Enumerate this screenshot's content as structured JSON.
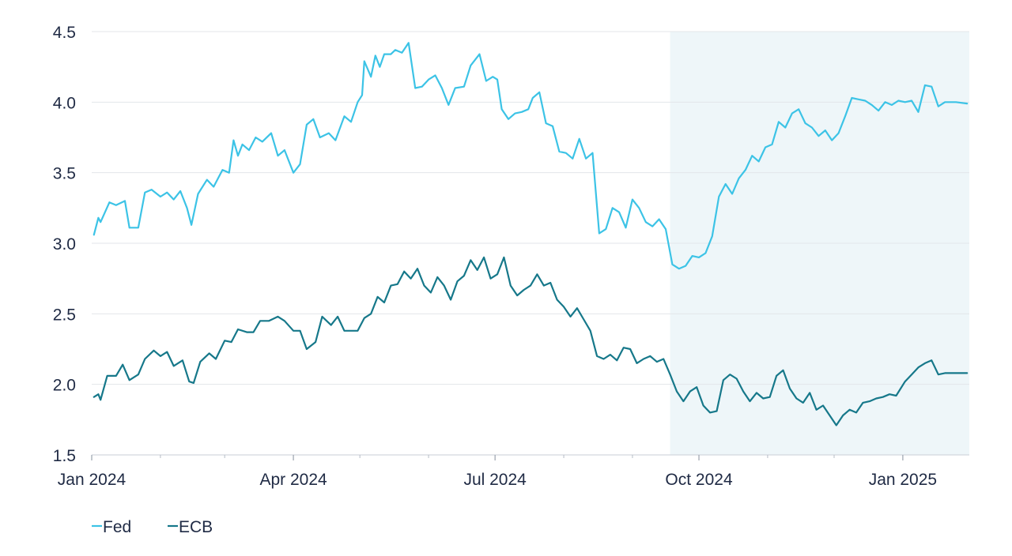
{
  "chart_data": {
    "type": "line",
    "title": "",
    "xlabel": "",
    "ylabel": "",
    "x_range": [
      "2024-01-01",
      "2025-01-31"
    ],
    "ylim": [
      1.5,
      4.5
    ],
    "y_ticks": [
      "1.5",
      "2.0",
      "2.5",
      "3.0",
      "3.5",
      "4.0",
      "4.5"
    ],
    "y_tick_values": [
      1.5,
      2.0,
      2.5,
      3.0,
      3.5,
      4.0,
      4.5
    ],
    "x_ticks": [
      {
        "date": "2024-01-01",
        "label": "Jan 2024"
      },
      {
        "date": "2024-04-01",
        "label": "Apr 2024"
      },
      {
        "date": "2024-07-01",
        "label": "Jul 2024"
      },
      {
        "date": "2024-10-01",
        "label": "Oct 2024"
      },
      {
        "date": "2025-01-01",
        "label": "Jan 2025"
      }
    ],
    "x_minor_ticks": [
      "2024-02-01",
      "2024-03-01",
      "2024-05-01",
      "2024-06-01",
      "2024-08-01",
      "2024-09-01",
      "2024-11-01",
      "2024-12-01"
    ],
    "grid": "horizontal",
    "legend_position": "bottom-left",
    "shaded_region": {
      "start": "2024-09-18",
      "end": "2025-01-31",
      "color": "#eef6f9"
    },
    "series": [
      {
        "name": "Fed",
        "color": "#3cc3e6",
        "points": [
          [
            "2024-01-02",
            3.06
          ],
          [
            "2024-01-04",
            3.18
          ],
          [
            "2024-01-05",
            3.15
          ],
          [
            "2024-01-09",
            3.29
          ],
          [
            "2024-01-12",
            3.27
          ],
          [
            "2024-01-16",
            3.3
          ],
          [
            "2024-01-18",
            3.11
          ],
          [
            "2024-01-22",
            3.11
          ],
          [
            "2024-01-25",
            3.36
          ],
          [
            "2024-01-28",
            3.38
          ],
          [
            "2024-02-01",
            3.33
          ],
          [
            "2024-02-04",
            3.36
          ],
          [
            "2024-02-07",
            3.31
          ],
          [
            "2024-02-10",
            3.37
          ],
          [
            "2024-02-13",
            3.25
          ],
          [
            "2024-02-15",
            3.13
          ],
          [
            "2024-02-18",
            3.35
          ],
          [
            "2024-02-22",
            3.45
          ],
          [
            "2024-02-25",
            3.4
          ],
          [
            "2024-02-29",
            3.52
          ],
          [
            "2024-03-03",
            3.5
          ],
          [
            "2024-03-05",
            3.73
          ],
          [
            "2024-03-07",
            3.62
          ],
          [
            "2024-03-09",
            3.7
          ],
          [
            "2024-03-12",
            3.66
          ],
          [
            "2024-03-15",
            3.75
          ],
          [
            "2024-03-18",
            3.72
          ],
          [
            "2024-03-22",
            3.78
          ],
          [
            "2024-03-25",
            3.62
          ],
          [
            "2024-03-28",
            3.66
          ],
          [
            "2024-04-01",
            3.5
          ],
          [
            "2024-04-04",
            3.56
          ],
          [
            "2024-04-07",
            3.84
          ],
          [
            "2024-04-10",
            3.88
          ],
          [
            "2024-04-13",
            3.75
          ],
          [
            "2024-04-17",
            3.78
          ],
          [
            "2024-04-20",
            3.73
          ],
          [
            "2024-04-24",
            3.9
          ],
          [
            "2024-04-27",
            3.86
          ],
          [
            "2024-04-30",
            4.0
          ],
          [
            "2024-05-02",
            4.05
          ],
          [
            "2024-05-03",
            4.29
          ],
          [
            "2024-05-06",
            4.18
          ],
          [
            "2024-05-08",
            4.33
          ],
          [
            "2024-05-10",
            4.25
          ],
          [
            "2024-05-12",
            4.34
          ],
          [
            "2024-05-15",
            4.34
          ],
          [
            "2024-05-17",
            4.37
          ],
          [
            "2024-05-20",
            4.35
          ],
          [
            "2024-05-23",
            4.42
          ],
          [
            "2024-05-26",
            4.1
          ],
          [
            "2024-05-29",
            4.11
          ],
          [
            "2024-06-01",
            4.16
          ],
          [
            "2024-06-04",
            4.19
          ],
          [
            "2024-06-07",
            4.1
          ],
          [
            "2024-06-10",
            3.98
          ],
          [
            "2024-06-13",
            4.1
          ],
          [
            "2024-06-17",
            4.11
          ],
          [
            "2024-06-20",
            4.26
          ],
          [
            "2024-06-24",
            4.34
          ],
          [
            "2024-06-27",
            4.15
          ],
          [
            "2024-06-30",
            4.18
          ],
          [
            "2024-07-02",
            4.16
          ],
          [
            "2024-07-04",
            3.95
          ],
          [
            "2024-07-07",
            3.88
          ],
          [
            "2024-07-10",
            3.92
          ],
          [
            "2024-07-13",
            3.93
          ],
          [
            "2024-07-16",
            3.95
          ],
          [
            "2024-07-18",
            4.03
          ],
          [
            "2024-07-21",
            4.07
          ],
          [
            "2024-07-24",
            3.85
          ],
          [
            "2024-07-27",
            3.83
          ],
          [
            "2024-07-30",
            3.65
          ],
          [
            "2024-08-02",
            3.64
          ],
          [
            "2024-08-05",
            3.6
          ],
          [
            "2024-08-08",
            3.74
          ],
          [
            "2024-08-11",
            3.6
          ],
          [
            "2024-08-14",
            3.64
          ],
          [
            "2024-08-17",
            3.07
          ],
          [
            "2024-08-20",
            3.1
          ],
          [
            "2024-08-23",
            3.25
          ],
          [
            "2024-08-26",
            3.22
          ],
          [
            "2024-08-29",
            3.11
          ],
          [
            "2024-09-01",
            3.31
          ],
          [
            "2024-09-04",
            3.25
          ],
          [
            "2024-09-07",
            3.15
          ],
          [
            "2024-09-10",
            3.12
          ],
          [
            "2024-09-13",
            3.17
          ],
          [
            "2024-09-16",
            3.1
          ],
          [
            "2024-09-19",
            2.85
          ],
          [
            "2024-09-22",
            2.82
          ],
          [
            "2024-09-25",
            2.84
          ],
          [
            "2024-09-28",
            2.91
          ],
          [
            "2024-10-01",
            2.9
          ],
          [
            "2024-10-04",
            2.93
          ],
          [
            "2024-10-07",
            3.05
          ],
          [
            "2024-10-10",
            3.33
          ],
          [
            "2024-10-13",
            3.42
          ],
          [
            "2024-10-16",
            3.35
          ],
          [
            "2024-10-19",
            3.46
          ],
          [
            "2024-10-22",
            3.52
          ],
          [
            "2024-10-25",
            3.62
          ],
          [
            "2024-10-28",
            3.58
          ],
          [
            "2024-10-31",
            3.68
          ],
          [
            "2024-11-03",
            3.7
          ],
          [
            "2024-11-06",
            3.86
          ],
          [
            "2024-11-09",
            3.82
          ],
          [
            "2024-11-12",
            3.92
          ],
          [
            "2024-11-15",
            3.95
          ],
          [
            "2024-11-18",
            3.85
          ],
          [
            "2024-11-21",
            3.82
          ],
          [
            "2024-11-24",
            3.76
          ],
          [
            "2024-11-27",
            3.8
          ],
          [
            "2024-11-30",
            3.73
          ],
          [
            "2024-12-03",
            3.78
          ],
          [
            "2024-12-06",
            3.9
          ],
          [
            "2024-12-09",
            4.03
          ],
          [
            "2024-12-12",
            4.02
          ],
          [
            "2024-12-15",
            4.01
          ],
          [
            "2024-12-18",
            3.98
          ],
          [
            "2024-12-21",
            3.94
          ],
          [
            "2024-12-24",
            4.0
          ],
          [
            "2024-12-27",
            3.98
          ],
          [
            "2024-12-30",
            4.01
          ],
          [
            "2025-01-02",
            4.0
          ],
          [
            "2025-01-05",
            4.01
          ],
          [
            "2025-01-08",
            3.93
          ],
          [
            "2025-01-11",
            4.12
          ],
          [
            "2025-01-14",
            4.11
          ],
          [
            "2025-01-17",
            3.97
          ],
          [
            "2025-01-20",
            4.0
          ],
          [
            "2025-01-25",
            4.0
          ],
          [
            "2025-01-30",
            3.99
          ]
        ]
      },
      {
        "name": "ECB",
        "color": "#16788a",
        "points": [
          [
            "2024-01-02",
            1.91
          ],
          [
            "2024-01-04",
            1.93
          ],
          [
            "2024-01-05",
            1.89
          ],
          [
            "2024-01-08",
            2.06
          ],
          [
            "2024-01-12",
            2.06
          ],
          [
            "2024-01-15",
            2.14
          ],
          [
            "2024-01-18",
            2.03
          ],
          [
            "2024-01-22",
            2.07
          ],
          [
            "2024-01-25",
            2.18
          ],
          [
            "2024-01-29",
            2.24
          ],
          [
            "2024-02-01",
            2.2
          ],
          [
            "2024-02-04",
            2.23
          ],
          [
            "2024-02-07",
            2.13
          ],
          [
            "2024-02-11",
            2.17
          ],
          [
            "2024-02-14",
            2.02
          ],
          [
            "2024-02-16",
            2.01
          ],
          [
            "2024-02-19",
            2.16
          ],
          [
            "2024-02-23",
            2.22
          ],
          [
            "2024-02-26",
            2.18
          ],
          [
            "2024-03-01",
            2.31
          ],
          [
            "2024-03-04",
            2.3
          ],
          [
            "2024-03-07",
            2.39
          ],
          [
            "2024-03-11",
            2.37
          ],
          [
            "2024-03-14",
            2.37
          ],
          [
            "2024-03-17",
            2.45
          ],
          [
            "2024-03-21",
            2.45
          ],
          [
            "2024-03-25",
            2.48
          ],
          [
            "2024-03-28",
            2.45
          ],
          [
            "2024-04-01",
            2.38
          ],
          [
            "2024-04-04",
            2.38
          ],
          [
            "2024-04-07",
            2.25
          ],
          [
            "2024-04-11",
            2.3
          ],
          [
            "2024-04-14",
            2.48
          ],
          [
            "2024-04-18",
            2.42
          ],
          [
            "2024-04-21",
            2.48
          ],
          [
            "2024-04-24",
            2.38
          ],
          [
            "2024-04-27",
            2.38
          ],
          [
            "2024-04-30",
            2.38
          ],
          [
            "2024-05-03",
            2.47
          ],
          [
            "2024-05-06",
            2.5
          ],
          [
            "2024-05-09",
            2.62
          ],
          [
            "2024-05-12",
            2.58
          ],
          [
            "2024-05-15",
            2.7
          ],
          [
            "2024-05-18",
            2.71
          ],
          [
            "2024-05-21",
            2.8
          ],
          [
            "2024-05-24",
            2.75
          ],
          [
            "2024-05-27",
            2.82
          ],
          [
            "2024-05-30",
            2.7
          ],
          [
            "2024-06-02",
            2.65
          ],
          [
            "2024-06-05",
            2.76
          ],
          [
            "2024-06-08",
            2.7
          ],
          [
            "2024-06-11",
            2.6
          ],
          [
            "2024-06-14",
            2.73
          ],
          [
            "2024-06-17",
            2.77
          ],
          [
            "2024-06-20",
            2.88
          ],
          [
            "2024-06-23",
            2.81
          ],
          [
            "2024-06-26",
            2.9
          ],
          [
            "2024-06-29",
            2.75
          ],
          [
            "2024-07-02",
            2.78
          ],
          [
            "2024-07-05",
            2.9
          ],
          [
            "2024-07-08",
            2.7
          ],
          [
            "2024-07-11",
            2.63
          ],
          [
            "2024-07-14",
            2.67
          ],
          [
            "2024-07-17",
            2.7
          ],
          [
            "2024-07-20",
            2.78
          ],
          [
            "2024-07-23",
            2.7
          ],
          [
            "2024-07-26",
            2.72
          ],
          [
            "2024-07-29",
            2.6
          ],
          [
            "2024-08-01",
            2.55
          ],
          [
            "2024-08-04",
            2.48
          ],
          [
            "2024-08-07",
            2.54
          ],
          [
            "2024-08-10",
            2.46
          ],
          [
            "2024-08-13",
            2.38
          ],
          [
            "2024-08-16",
            2.2
          ],
          [
            "2024-08-19",
            2.18
          ],
          [
            "2024-08-22",
            2.21
          ],
          [
            "2024-08-25",
            2.17
          ],
          [
            "2024-08-28",
            2.26
          ],
          [
            "2024-08-31",
            2.25
          ],
          [
            "2024-09-03",
            2.15
          ],
          [
            "2024-09-06",
            2.18
          ],
          [
            "2024-09-09",
            2.2
          ],
          [
            "2024-09-12",
            2.16
          ],
          [
            "2024-09-15",
            2.18
          ],
          [
            "2024-09-18",
            2.07
          ],
          [
            "2024-09-21",
            1.95
          ],
          [
            "2024-09-24",
            1.88
          ],
          [
            "2024-09-27",
            1.95
          ],
          [
            "2024-09-30",
            1.98
          ],
          [
            "2024-10-03",
            1.85
          ],
          [
            "2024-10-06",
            1.8
          ],
          [
            "2024-10-09",
            1.81
          ],
          [
            "2024-10-12",
            2.03
          ],
          [
            "2024-10-15",
            2.07
          ],
          [
            "2024-10-18",
            2.04
          ],
          [
            "2024-10-21",
            1.95
          ],
          [
            "2024-10-24",
            1.88
          ],
          [
            "2024-10-27",
            1.94
          ],
          [
            "2024-10-30",
            1.9
          ],
          [
            "2024-11-02",
            1.91
          ],
          [
            "2024-11-05",
            2.06
          ],
          [
            "2024-11-08",
            2.1
          ],
          [
            "2024-11-11",
            1.97
          ],
          [
            "2024-11-14",
            1.9
          ],
          [
            "2024-11-17",
            1.87
          ],
          [
            "2024-11-20",
            1.94
          ],
          [
            "2024-11-23",
            1.82
          ],
          [
            "2024-11-26",
            1.85
          ],
          [
            "2024-11-29",
            1.78
          ],
          [
            "2024-12-02",
            1.71
          ],
          [
            "2024-12-05",
            1.78
          ],
          [
            "2024-12-08",
            1.82
          ],
          [
            "2024-12-11",
            1.8
          ],
          [
            "2024-12-14",
            1.87
          ],
          [
            "2024-12-17",
            1.88
          ],
          [
            "2024-12-20",
            1.9
          ],
          [
            "2024-12-23",
            1.91
          ],
          [
            "2024-12-26",
            1.93
          ],
          [
            "2024-12-29",
            1.92
          ],
          [
            "2025-01-02",
            2.02
          ],
          [
            "2025-01-05",
            2.07
          ],
          [
            "2025-01-08",
            2.12
          ],
          [
            "2025-01-11",
            2.15
          ],
          [
            "2025-01-14",
            2.17
          ],
          [
            "2025-01-17",
            2.07
          ],
          [
            "2025-01-20",
            2.08
          ],
          [
            "2025-01-25",
            2.08
          ],
          [
            "2025-01-30",
            2.08
          ]
        ]
      }
    ]
  }
}
